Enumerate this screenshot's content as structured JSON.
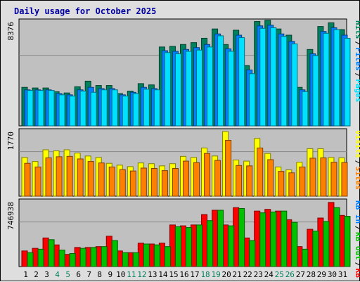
{
  "chart_data": {
    "type": "bar",
    "title": "Daily usage for October 2025",
    "categories": [
      "1",
      "2",
      "3",
      "4",
      "5",
      "6",
      "7",
      "8",
      "9",
      "10",
      "11",
      "12",
      "13",
      "14",
      "15",
      "16",
      "17",
      "18",
      "19",
      "20",
      "21",
      "22",
      "23",
      "24",
      "25",
      "26",
      "27",
      "28",
      "29",
      "30",
      "31"
    ],
    "weekend_days": [
      "4",
      "5",
      "11",
      "12",
      "18",
      "19",
      "25",
      "26"
    ],
    "panels": [
      {
        "id": "hits-files-pages",
        "max_label": "8376",
        "ylim": [
          0,
          8376
        ],
        "legend": [
          "Hits",
          "Files",
          "Pages"
        ],
        "series": [
          {
            "name": "Hits",
            "color": "#00805c",
            "values": [
              3100,
              3050,
              3050,
              2750,
              2650,
              3150,
              3600,
              3250,
              3250,
              2600,
              2800,
              3400,
              3300,
              6350,
              6400,
              6550,
              6700,
              7050,
              7800,
              6550,
              7700,
              4850,
              8400,
              8500,
              7800,
              7300,
              3100,
              6150,
              8000,
              8300,
              7750
            ]
          },
          {
            "name": "Files",
            "color": "#0080ff",
            "values": [
              2900,
              2900,
              2900,
              2600,
              2500,
              2900,
              3100,
              3000,
              3000,
              2500,
              2700,
              3100,
              3000,
              6050,
              6000,
              6150,
              6300,
              6550,
              7400,
              6200,
              7300,
              4500,
              8050,
              8100,
              7400,
              6800,
              2900,
              5800,
              7600,
              7900,
              7300
            ]
          },
          {
            "name": "Pages",
            "color": "#00e0ff",
            "values": [
              2850,
              2850,
              2850,
              2500,
              2400,
              2800,
              2700,
              2900,
              2900,
              2400,
              2600,
              2950,
              2900,
              5900,
              5800,
              6000,
              6100,
              6350,
              7250,
              6000,
              7100,
              4200,
              7850,
              7900,
              7200,
              6600,
              2750,
              5650,
              7450,
              7750,
              7050
            ]
          }
        ]
      },
      {
        "id": "visits-sites",
        "max_label": "1770",
        "ylim": [
          0,
          1770
        ],
        "legend": [
          "Visits",
          "Sites"
        ],
        "series": [
          {
            "name": "Visits",
            "color": "#ffff00",
            "values": [
              1060,
              950,
              1270,
              1240,
              1270,
              1180,
              1100,
              1060,
              900,
              850,
              810,
              910,
              890,
              830,
              890,
              1090,
              1060,
              1320,
              1100,
              1770,
              990,
              960,
              1580,
              1170,
              800,
              720,
              930,
              1300,
              1300,
              1060,
              1050
            ]
          },
          {
            "name": "Sites",
            "color": "#ff8000",
            "values": [
              900,
              800,
              1050,
              1080,
              1090,
              1020,
              950,
              910,
              800,
              730,
              690,
              770,
              760,
              700,
              760,
              960,
              920,
              1170,
              980,
              1530,
              840,
              830,
              1320,
              1000,
              680,
              640,
              800,
              1040,
              1050,
              930,
              920
            ]
          }
        ]
      },
      {
        "id": "kbytes",
        "max_label": "746938",
        "ylim": [
          0,
          746938
        ],
        "legend": [
          "KB In",
          "KB Out",
          "KB F"
        ],
        "series": [
          {
            "name": "KB F",
            "color": "#ff0000",
            "values": [
              180000,
              210000,
              330000,
              250000,
              140000,
              220000,
              220000,
              230000,
              350000,
              180000,
              160000,
              270000,
              260000,
              270000,
              480000,
              470000,
              480000,
              600000,
              650000,
              480000,
              680000,
              330000,
              640000,
              660000,
              640000,
              540000,
              230000,
              430000,
              560000,
              740000,
              590000
            ]
          },
          {
            "name": "KB In",
            "color": "#0080ff",
            "values": [
              0,
              0,
              0,
              0,
              0,
              0,
              0,
              0,
              0,
              0,
              0,
              0,
              0,
              0,
              0,
              0,
              0,
              0,
              0,
              0,
              0,
              0,
              0,
              0,
              0,
              0,
              0,
              0,
              0,
              0,
              0
            ]
          },
          {
            "name": "KB Out",
            "color": "#00c000",
            "values": [
              160000,
              200000,
              310000,
              190000,
              150000,
              210000,
              220000,
              230000,
              300000,
              160000,
              160000,
              260000,
              250000,
              230000,
              460000,
              450000,
              480000,
              530000,
              650000,
              470000,
              670000,
              300000,
              620000,
              630000,
              640000,
              510000,
              200000,
              410000,
              520000,
              680000,
              580000
            ]
          }
        ]
      }
    ]
  }
}
